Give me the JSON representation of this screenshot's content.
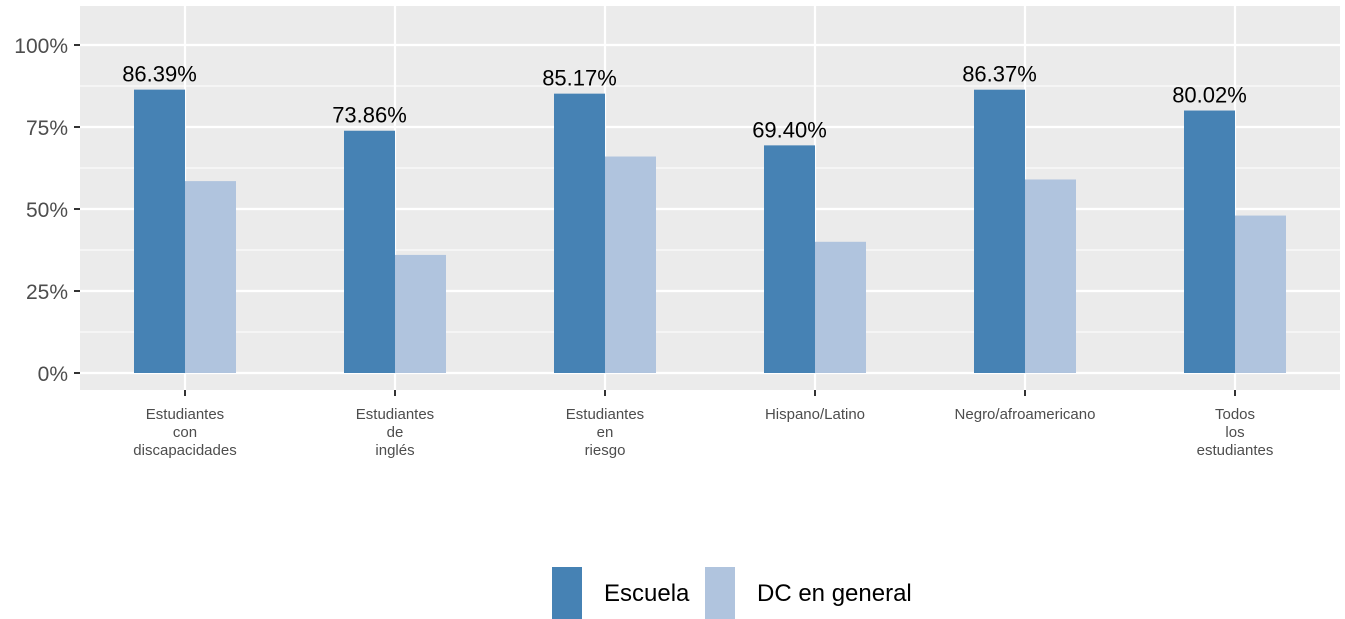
{
  "chart_data": {
    "type": "bar",
    "categories": [
      [
        "Estudiantes",
        "con",
        "discapacidades"
      ],
      [
        "Estudiantes",
        "de",
        "inglés"
      ],
      [
        "Estudiantes",
        "en",
        "riesgo"
      ],
      [
        "Hispano/Latino"
      ],
      [
        "Negro/afroamericano"
      ],
      [
        "Todos",
        "los",
        "estudiantes"
      ]
    ],
    "series": [
      {
        "name": "Escuela",
        "color": "#4682b4",
        "values": [
          86.39,
          73.86,
          85.17,
          69.4,
          86.37,
          80.02
        ],
        "labels": [
          "86.39%",
          "73.86%",
          "85.17%",
          "69.40%",
          "86.37%",
          "80.02%"
        ]
      },
      {
        "name": "DC en general",
        "color": "#b0c4de",
        "values": [
          58.5,
          36.0,
          66.0,
          40.0,
          59.0,
          48.0
        ]
      }
    ],
    "yticks": [
      "0%",
      "25%",
      "50%",
      "75%",
      "100%"
    ],
    "ytick_values": [
      0,
      25,
      50,
      75,
      100
    ],
    "ylim": [
      0,
      110
    ],
    "grid": true,
    "legend_position": "bottom",
    "title": "",
    "xlabel": "",
    "ylabel": ""
  }
}
